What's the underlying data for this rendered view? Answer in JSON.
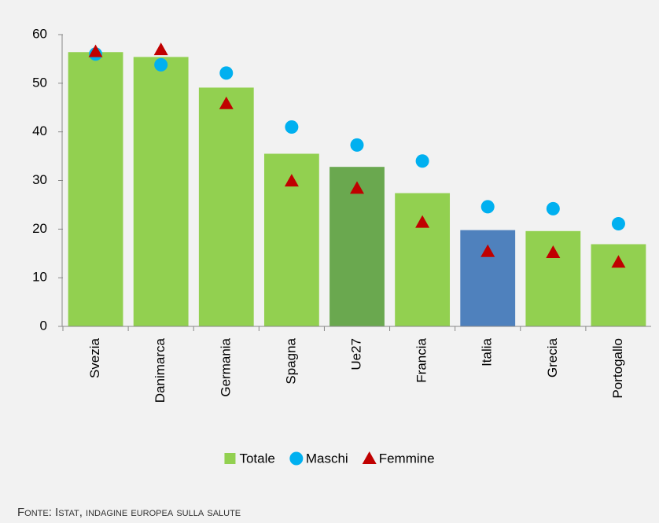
{
  "chart_data": {
    "type": "bar",
    "categories": [
      "Svezia",
      "Danimarca",
      "Germania",
      "Spagna",
      "Ue27",
      "Francia",
      "Italia",
      "Grecia",
      "Portogallo"
    ],
    "series": [
      {
        "name": "Totale",
        "type": "bar",
        "color": "#92d050",
        "colors": [
          "#92d050",
          "#92d050",
          "#92d050",
          "#92d050",
          "#6aa84f",
          "#92d050",
          "#4f81bd",
          "#92d050",
          "#92d050"
        ],
        "values": [
          56.4,
          55.4,
          49.1,
          35.5,
          32.8,
          27.4,
          19.8,
          19.6,
          16.9
        ]
      },
      {
        "name": "Maschi",
        "type": "scatter",
        "marker": "circle",
        "color": "#00b0f0",
        "values": [
          56,
          53.8,
          52.1,
          41,
          37.3,
          34,
          24.6,
          24.2,
          21.1
        ]
      },
      {
        "name": "Femmine",
        "type": "scatter",
        "marker": "triangle",
        "color": "#c00000",
        "values": [
          56.5,
          56.9,
          45.8,
          29.9,
          28.4,
          21.4,
          15.4,
          15.2,
          13.2
        ]
      }
    ],
    "ylim": [
      0,
      60
    ],
    "yticks": [
      0,
      10,
      20,
      30,
      40,
      50,
      60
    ],
    "grid": false,
    "note": "Fonte: Istat, indagine europea sulla salute"
  }
}
